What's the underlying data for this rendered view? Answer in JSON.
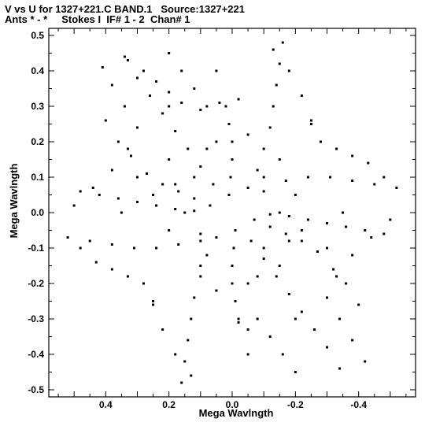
{
  "header": {
    "line1": "V vs U for 1327+221.C BAND.1   Source:1327+221",
    "line2": "Ants * - *     Stokes I  IF# 1 - 2  Chan# 1"
  },
  "chart_data": {
    "type": "scatter",
    "xlabel": "Mega Wavlngth",
    "ylabel": "Mega Wavlngth",
    "xlim": [
      0.58,
      -0.58
    ],
    "ylim": [
      -0.52,
      0.52
    ],
    "x_ticks": [
      0.4,
      0.2,
      0.0,
      -0.2,
      -0.4
    ],
    "x_tick_labels": [
      "0.4",
      "0.2",
      "0.0",
      "-0.2",
      "-0.4"
    ],
    "y_ticks": [
      0.5,
      0.4,
      0.3,
      0.2,
      0.1,
      0.0,
      -0.1,
      -0.2,
      -0.3,
      -0.4,
      -0.5
    ],
    "y_tick_labels": [
      "0.5",
      "0.4",
      "0.3",
      "0.2",
      "0.1",
      "0.0",
      "-0.1",
      "-0.2",
      "-0.3",
      "-0.4",
      "-0.5"
    ],
    "grid": false,
    "marker_color": "#000000",
    "series": [
      {
        "values": [
          [
            0.4,
            0.26
          ],
          [
            0.36,
            0.2
          ],
          [
            0.32,
            0.16
          ],
          [
            0.27,
            0.11
          ],
          [
            0.22,
            0.08
          ],
          [
            0.17,
            0.06
          ],
          [
            0.12,
            0.04
          ],
          [
            0.07,
            0.02
          ],
          [
            -0.4,
            -0.26
          ],
          [
            -0.36,
            -0.2
          ],
          [
            -0.32,
            -0.16
          ],
          [
            -0.27,
            -0.11
          ],
          [
            -0.22,
            -0.08
          ],
          [
            -0.17,
            -0.06
          ],
          [
            -0.12,
            -0.04
          ],
          [
            -0.07,
            -0.02
          ],
          [
            0.48,
            0.06
          ],
          [
            0.42,
            0.05
          ],
          [
            0.36,
            0.04
          ],
          [
            0.3,
            0.03
          ],
          [
            0.24,
            0.02
          ],
          [
            0.18,
            0.01
          ],
          [
            0.12,
            0.005
          ],
          [
            -0.48,
            -0.06
          ],
          [
            -0.42,
            -0.05
          ],
          [
            -0.36,
            -0.04
          ],
          [
            -0.3,
            -0.03
          ],
          [
            -0.24,
            -0.02
          ],
          [
            -0.18,
            -0.01
          ],
          [
            -0.12,
            -0.005
          ],
          [
            0.52,
            -0.07
          ],
          [
            0.45,
            -0.08
          ],
          [
            0.38,
            -0.09
          ],
          [
            0.31,
            -0.1
          ],
          [
            0.24,
            -0.1
          ],
          [
            0.17,
            -0.09
          ],
          [
            0.1,
            -0.06
          ],
          [
            -0.52,
            0.07
          ],
          [
            -0.45,
            0.08
          ],
          [
            -0.38,
            0.09
          ],
          [
            -0.31,
            0.1
          ],
          [
            -0.24,
            0.1
          ],
          [
            -0.17,
            0.09
          ],
          [
            -0.1,
            0.06
          ],
          [
            0.34,
            0.44
          ],
          [
            0.3,
            0.38
          ],
          [
            0.26,
            0.33
          ],
          [
            0.22,
            0.28
          ],
          [
            0.18,
            0.23
          ],
          [
            0.14,
            0.18
          ],
          [
            0.1,
            0.13
          ],
          [
            0.06,
            0.08
          ],
          [
            -0.34,
            -0.44
          ],
          [
            -0.3,
            -0.38
          ],
          [
            -0.26,
            -0.33
          ],
          [
            -0.22,
            -0.28
          ],
          [
            -0.18,
            -0.23
          ],
          [
            -0.14,
            -0.18
          ],
          [
            -0.1,
            -0.13
          ],
          [
            -0.06,
            -0.08
          ],
          [
            0.33,
            0.43
          ],
          [
            0.28,
            0.4
          ],
          [
            0.24,
            0.37
          ],
          [
            0.2,
            0.34
          ],
          [
            0.16,
            0.31
          ],
          [
            0.1,
            0.29
          ],
          [
            0.04,
            0.31
          ],
          [
            -0.02,
            0.32
          ],
          [
            0.02,
            0.3
          ],
          [
            0.01,
            0.25
          ],
          [
            0.0,
            0.2
          ],
          [
            0.0,
            0.15
          ],
          [
            0.005,
            0.1
          ],
          [
            0.01,
            0.05
          ],
          [
            -0.02,
            -0.3
          ],
          [
            -0.01,
            -0.25
          ],
          [
            0.0,
            -0.2
          ],
          [
            0.0,
            -0.15
          ],
          [
            -0.005,
            -0.1
          ],
          [
            -0.01,
            -0.05
          ],
          [
            -0.16,
            0.48
          ],
          [
            -0.15,
            0.42
          ],
          [
            -0.14,
            0.36
          ],
          [
            -0.13,
            0.3
          ],
          [
            -0.12,
            0.24
          ],
          [
            -0.1,
            0.18
          ],
          [
            -0.08,
            0.12
          ],
          [
            -0.05,
            0.07
          ],
          [
            0.16,
            -0.48
          ],
          [
            0.15,
            -0.42
          ],
          [
            0.14,
            -0.36
          ],
          [
            0.13,
            -0.3
          ],
          [
            0.12,
            -0.24
          ],
          [
            0.1,
            -0.18
          ],
          [
            0.08,
            -0.12
          ],
          [
            0.05,
            -0.07
          ],
          [
            -0.13,
            0.46
          ],
          [
            -0.18,
            0.4
          ],
          [
            -0.22,
            0.33
          ],
          [
            -0.25,
            0.26
          ],
          [
            -0.28,
            0.2
          ],
          [
            -0.33,
            0.18
          ],
          [
            -0.38,
            0.16
          ],
          [
            -0.43,
            0.14
          ],
          [
            -0.48,
            0.1
          ],
          [
            0.13,
            -0.46
          ],
          [
            0.18,
            -0.4
          ],
          [
            0.22,
            -0.33
          ],
          [
            0.25,
            -0.26
          ],
          [
            0.28,
            -0.2
          ],
          [
            0.33,
            -0.18
          ],
          [
            0.38,
            -0.16
          ],
          [
            0.43,
            -0.14
          ],
          [
            0.48,
            -0.1
          ],
          [
            -0.5,
            -0.02
          ],
          [
            -0.44,
            -0.07
          ],
          [
            -0.38,
            -0.12
          ],
          [
            -0.33,
            -0.18
          ],
          [
            -0.3,
            -0.24
          ],
          [
            -0.34,
            -0.3
          ],
          [
            -0.38,
            -0.36
          ],
          [
            -0.42,
            -0.42
          ],
          [
            0.5,
            0.02
          ],
          [
            0.44,
            0.07
          ],
          [
            0.38,
            0.12
          ],
          [
            0.33,
            0.18
          ],
          [
            0.3,
            0.24
          ],
          [
            0.34,
            0.3
          ],
          [
            0.38,
            0.36
          ],
          [
            0.41,
            0.41
          ],
          [
            -0.2,
            -0.45
          ],
          [
            -0.16,
            -0.4
          ],
          [
            -0.12,
            -0.35
          ],
          [
            -0.08,
            -0.3
          ],
          [
            -0.05,
            -0.33
          ],
          [
            -0.02,
            -0.31
          ],
          [
            0.2,
            0.45
          ],
          [
            0.16,
            0.4
          ],
          [
            0.12,
            0.35
          ],
          [
            0.08,
            0.3
          ],
          [
            0.2,
            0.15
          ],
          [
            0.25,
            0.05
          ],
          [
            0.2,
            -0.05
          ],
          [
            0.1,
            -0.15
          ],
          [
            0.05,
            -0.22
          ],
          [
            -0.05,
            -0.2
          ],
          [
            -0.15,
            -0.15
          ],
          [
            -0.22,
            -0.05
          ],
          [
            -0.2,
            0.05
          ],
          [
            -0.15,
            0.15
          ],
          [
            -0.05,
            0.22
          ],
          [
            0.05,
            0.2
          ],
          [
            0.12,
            0.1
          ],
          [
            0.15,
            0.0
          ],
          [
            0.1,
            -0.08
          ],
          [
            -0.1,
            -0.1
          ],
          [
            -0.15,
            0.0
          ],
          [
            -0.1,
            0.1
          ],
          [
            0.08,
            0.18
          ],
          [
            0.18,
            0.08
          ],
          [
            -0.08,
            -0.18
          ],
          [
            -0.18,
            -0.08
          ],
          [
            0.3,
            0.1
          ],
          [
            -0.3,
            -0.1
          ],
          [
            0.05,
            0.4
          ],
          [
            -0.05,
            -0.4
          ],
          [
            0.2,
            0.3
          ],
          [
            -0.2,
            -0.3
          ],
          [
            0.35,
            0.0
          ],
          [
            -0.35,
            0.0
          ],
          [
            0.25,
            -0.25
          ],
          [
            -0.25,
            0.25
          ]
        ]
      }
    ]
  }
}
